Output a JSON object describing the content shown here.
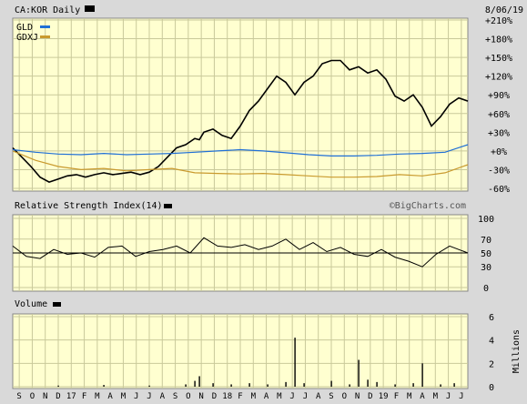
{
  "colors": {
    "panel_bg": "#ffffd0",
    "frame_bg": "#d9d9d9",
    "grid": "#c9c99a",
    "price": "#000000",
    "gld": "#1f6fd6",
    "gdxj": "#c99a2e",
    "text": "#000000"
  },
  "header": {
    "ticker_label": "CA:KOR Daily",
    "date": "8/06/19",
    "watermark": "©BigCharts.com"
  },
  "chart_data": [
    {
      "type": "line",
      "panel": "price",
      "title": "CA:KOR Daily",
      "ylabel": "",
      "y_ticks": [
        "+210%",
        "+180%",
        "+150%",
        "+120%",
        "+90%",
        "+60%",
        "+30%",
        "+0%",
        "-30%",
        "-60%"
      ],
      "ylim": [
        -60,
        210
      ],
      "legend": [
        "GLD",
        "GDXJ"
      ],
      "legend_placement": "top-left",
      "series": [
        {
          "name": "",
          "color": "#000000",
          "x": [
            0,
            2,
            4,
            6,
            8,
            10,
            12,
            14,
            16,
            18,
            20,
            22,
            24,
            26,
            28,
            30,
            32,
            34,
            36,
            38,
            40,
            41,
            42,
            44,
            46,
            48,
            50,
            52,
            54,
            56,
            58,
            60,
            62,
            64,
            66,
            68,
            70,
            72,
            74,
            76,
            78,
            80,
            82,
            84,
            86,
            88,
            90,
            92,
            94,
            96,
            98,
            100
          ],
          "y": [
            5,
            -10,
            -25,
            -42,
            -50,
            -45,
            -40,
            -38,
            -42,
            -38,
            -35,
            -38,
            -36,
            -34,
            -38,
            -34,
            -25,
            -10,
            5,
            10,
            20,
            18,
            30,
            35,
            25,
            20,
            40,
            65,
            80,
            100,
            120,
            110,
            90,
            110,
            120,
            140,
            145,
            145,
            130,
            135,
            125,
            130,
            115,
            88,
            80,
            90,
            70,
            40,
            55,
            75,
            85,
            80
          ]
        },
        {
          "name": "GLD",
          "color": "#1f6fd6",
          "x": [
            0,
            5,
            10,
            15,
            20,
            25,
            30,
            35,
            40,
            45,
            50,
            55,
            60,
            65,
            70,
            75,
            80,
            85,
            90,
            95,
            100
          ],
          "y": [
            2,
            -2,
            -5,
            -6,
            -4,
            -6,
            -5,
            -4,
            -2,
            0,
            2,
            0,
            -3,
            -6,
            -8,
            -8,
            -7,
            -5,
            -4,
            -2,
            10
          ]
        },
        {
          "name": "GDXJ",
          "color": "#c99a2e",
          "x": [
            0,
            5,
            10,
            15,
            20,
            25,
            30,
            35,
            40,
            45,
            50,
            55,
            60,
            65,
            70,
            75,
            80,
            85,
            90,
            95,
            100
          ],
          "y": [
            0,
            -15,
            -25,
            -30,
            -28,
            -32,
            -30,
            -28,
            -35,
            -36,
            -37,
            -36,
            -38,
            -40,
            -42,
            -42,
            -41,
            -38,
            -40,
            -35,
            -22
          ]
        }
      ]
    },
    {
      "type": "line",
      "panel": "rsi",
      "title": "Relative Strength Index(14)",
      "y_ticks": [
        "100",
        "70",
        "50",
        "30",
        "0"
      ],
      "ylim": [
        0,
        100
      ],
      "reference_line": 50,
      "series": [
        {
          "name": "",
          "color": "#000000",
          "x": [
            0,
            3,
            6,
            9,
            12,
            15,
            18,
            21,
            24,
            27,
            30,
            33,
            36,
            39,
            42,
            45,
            48,
            51,
            54,
            57,
            60,
            63,
            66,
            69,
            72,
            75,
            78,
            81,
            84,
            87,
            90,
            93,
            96,
            100
          ],
          "y": [
            60,
            45,
            42,
            55,
            48,
            50,
            44,
            58,
            60,
            45,
            52,
            55,
            60,
            50,
            72,
            60,
            58,
            62,
            55,
            60,
            70,
            55,
            65,
            52,
            58,
            48,
            45,
            55,
            44,
            38,
            30,
            48,
            60,
            50
          ]
        }
      ]
    },
    {
      "type": "bar",
      "panel": "volume",
      "title": "Volume",
      "ylabel": "Millions",
      "y_ticks": [
        "6",
        "4",
        "2",
        "0"
      ],
      "ylim": [
        0,
        6
      ],
      "x": [
        10,
        20,
        30,
        38,
        40,
        41,
        44,
        48,
        52,
        56,
        60,
        62,
        64,
        70,
        74,
        76,
        78,
        80,
        84,
        88,
        90,
        94,
        97
      ],
      "values": [
        0.1,
        0.15,
        0.1,
        0.2,
        0.5,
        0.9,
        0.3,
        0.2,
        0.3,
        0.2,
        0.4,
        4.2,
        0.3,
        0.5,
        0.2,
        2.3,
        0.6,
        0.4,
        0.2,
        0.3,
        2.0,
        0.2,
        0.3
      ]
    }
  ],
  "x_axis": {
    "months": [
      "S",
      "O",
      "N",
      "D",
      "17",
      "F",
      "M",
      "A",
      "M",
      "J",
      "J",
      "A",
      "S",
      "O",
      "N",
      "D",
      "18",
      "F",
      "M",
      "A",
      "M",
      "J",
      "J",
      "A",
      "S",
      "O",
      "N",
      "D",
      "19",
      "F",
      "M",
      "A",
      "M",
      "J",
      "J"
    ]
  }
}
